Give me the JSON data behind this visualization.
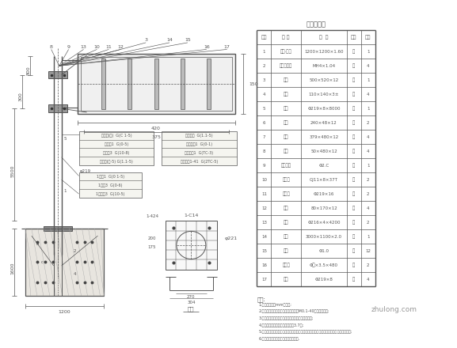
{
  "bg_color": "#ffffff",
  "line_color": "#555555",
  "title_text": "构件明细表",
  "table_headers": [
    "序号",
    "名 称",
    "规  格",
    "材质",
    "数量"
  ],
  "table_rows": [
    [
      "1",
      "底架·边框",
      "1200×1200×1.60",
      "卢",
      "1"
    ],
    [
      "2",
      "长圆孔钢板",
      "MH4×1.04",
      "宁",
      "4"
    ],
    [
      "3",
      "龙骨",
      "500×520×12",
      "宁",
      "1"
    ],
    [
      "4",
      "方管",
      "110×140×3±",
      "龙",
      "4"
    ],
    [
      "5",
      "立柱",
      "Φ219×8×8000",
      "宁",
      "1"
    ],
    [
      "6",
      "方管",
      "240×48×12",
      "宁",
      "2"
    ],
    [
      "7",
      "英板",
      "379×480×12",
      "龙",
      "4"
    ],
    [
      "8",
      "英板",
      "50×480×12",
      "宁",
      "4"
    ],
    [
      "9",
      "固定架型",
      "Φ2.C",
      "况",
      "1"
    ],
    [
      "10",
      "连接管",
      "GJ11×8×37T",
      "龙",
      "2"
    ],
    [
      "11",
      "公之处",
      "Φ219×16",
      "宁",
      "2"
    ],
    [
      "12",
      "方管",
      "80×170×12",
      "龙",
      "4"
    ],
    [
      "13",
      "螺子",
      "Φ216×4×4200",
      "宁",
      "2"
    ],
    [
      "14",
      "标牌",
      "3000×1100×2.0",
      "宁",
      "1"
    ],
    [
      "15",
      "草木",
      "Φ1.0",
      "龙",
      "12"
    ],
    [
      "16",
      "角边界",
      "Φ下×3.5×480",
      "宁",
      "2"
    ],
    [
      "17",
      "正处",
      "Φ219×8",
      "宁",
      "4"
    ]
  ],
  "notes_title": "备注:",
  "notes": [
    "1.本图尺寸均以mm为单位;",
    "2.采标尺规制厂二套英规，应采用规格M0.1-40钢钢标准连接;",
    "3.立柱与立柱间的连接要求不应违接，采用联接规定;",
    "4.树脂要需在道，山谷余向钢结构3.7板;",
    "5.注明底式不规要多产，另确定要不平，应规正状式，数板、底面将名向分岐号生态连接标;",
    "6.连接要求合适向交通标志实实要落实."
  ],
  "watermark": "zhulong.com",
  "dim_800": "800",
  "dim_300": "300",
  "dim_5500": "5500",
  "dim_420": "420",
  "dim_375": "375",
  "dim_150": "150",
  "dim_1200": "1200",
  "dim_1600": "1600"
}
